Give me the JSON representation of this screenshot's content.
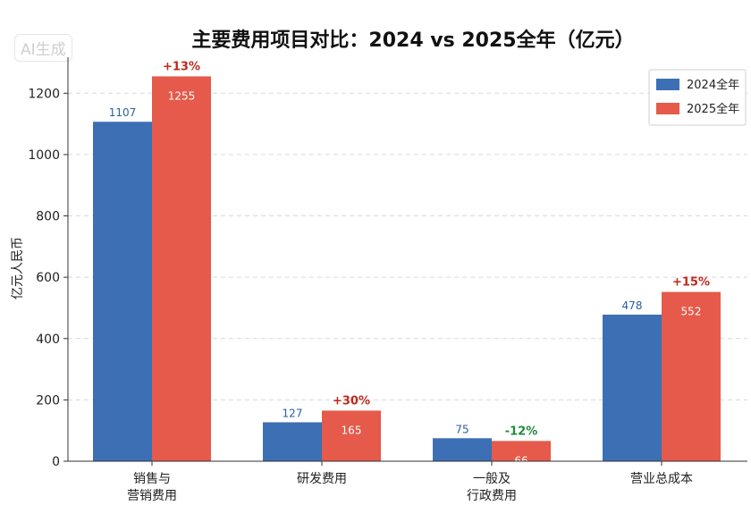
{
  "watermark": "AI生成",
  "colors": {
    "series_2024": "#3d6fb5",
    "series_2025": "#e55a4a",
    "increase": "#c0271c",
    "decrease": "#1f8a3d",
    "grid": "#d9d9d9",
    "axis": "#333333"
  },
  "chart_data": {
    "type": "bar",
    "title": "主要费用项目对比：2024 vs 2025全年（亿元）",
    "xlabel": "",
    "ylabel": "亿元人民币",
    "ylim": [
      0,
      1300
    ],
    "yticks": [
      0,
      200,
      400,
      600,
      800,
      1000,
      1200
    ],
    "grid": true,
    "legend_position": "top-right",
    "categories": [
      [
        "销售与",
        "营销费用"
      ],
      [
        "研发费用"
      ],
      [
        "一般及",
        "行政费用"
      ],
      [
        "营业总成本"
      ]
    ],
    "series": [
      {
        "name": "2024全年",
        "values": [
          1107,
          127,
          75,
          478
        ],
        "labels": [
          "1107",
          "127",
          "75",
          "478"
        ]
      },
      {
        "name": "2025全年",
        "values": [
          1255,
          165,
          66,
          552
        ],
        "labels": [
          "1255",
          "165",
          "66",
          "552"
        ]
      }
    ],
    "changes": [
      "+13%",
      "+30%",
      "-12%",
      "+15%"
    ],
    "change_direction": [
      "up",
      "up",
      "down",
      "up"
    ]
  }
}
